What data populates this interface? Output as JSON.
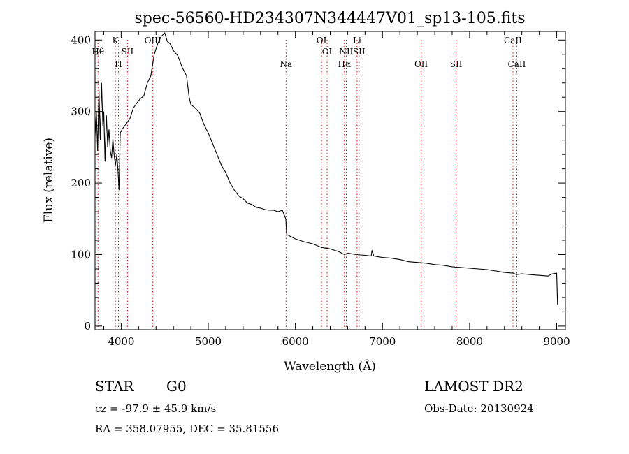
{
  "chart_data": {
    "type": "line",
    "title": "spec-56560-HD234307N344447V01_sp13-105.fits",
    "xlabel": "Wavelength (Å)",
    "ylabel": "Flux (relative)",
    "xlim": [
      3700,
      9100
    ],
    "ylim": [
      -5,
      412
    ],
    "xticks": [
      4000,
      5000,
      6000,
      7000,
      8000,
      9000
    ],
    "yticks": [
      0,
      100,
      200,
      300,
      400
    ],
    "grid": false,
    "line_color": "#000000",
    "marker_color": "#cc0000",
    "series": [
      {
        "x": [
          3700,
          3715,
          3730,
          3745,
          3760,
          3775,
          3790,
          3800,
          3815,
          3830,
          3845,
          3860,
          3875,
          3890,
          3905,
          3920,
          3935,
          3950,
          3965,
          3975,
          3990,
          4010,
          4040,
          4070,
          4100,
          4140,
          4180,
          4220,
          4260,
          4300,
          4340,
          4380,
          4420,
          4460,
          4500,
          4530,
          4560,
          4600,
          4650,
          4700,
          4750,
          4780,
          4800,
          4850,
          4900,
          4950,
          5000,
          5050,
          5100,
          5150,
          5200,
          5250,
          5300,
          5350,
          5400,
          5450,
          5500,
          5550,
          5600,
          5650,
          5700,
          5750,
          5800,
          5850,
          5890,
          5900,
          5950,
          6000,
          6100,
          6200,
          6300,
          6400,
          6500,
          6563,
          6600,
          6700,
          6800,
          6870,
          6880,
          6900,
          7000,
          7100,
          7200,
          7300,
          7400,
          7500,
          7600,
          7700,
          7800,
          7900,
          8000,
          8100,
          8200,
          8300,
          8400,
          8500,
          8540,
          8600,
          8700,
          8800,
          8900,
          8950,
          9000,
          9010
        ],
        "y": [
          265,
          300,
          245,
          330,
          260,
          340,
          280,
          300,
          230,
          295,
          250,
          275,
          245,
          235,
          262,
          238,
          225,
          240,
          215,
          190,
          270,
          275,
          280,
          285,
          290,
          305,
          312,
          318,
          322,
          340,
          350,
          380,
          395,
          405,
          410,
          398,
          395,
          385,
          378,
          362,
          350,
          320,
          310,
          305,
          298,
          282,
          270,
          255,
          240,
          225,
          215,
          200,
          190,
          182,
          178,
          172,
          170,
          166,
          165,
          163,
          162,
          162,
          160,
          162,
          150,
          128,
          125,
          122,
          118,
          115,
          110,
          108,
          104,
          100,
          102,
          100,
          99,
          98,
          106,
          98,
          96,
          95,
          93,
          90,
          89,
          88,
          86,
          85,
          83,
          82,
          81,
          80,
          79,
          77,
          75,
          74,
          72,
          73,
          72,
          71,
          70,
          73,
          74,
          30
        ]
      }
    ],
    "line_markers": [
      {
        "x": 3734,
        "labels": [
          "Hθ"
        ],
        "row": 3
      },
      {
        "x": 3934,
        "labels": [
          "K"
        ],
        "row": 1
      },
      {
        "x": 3969,
        "labels": [
          "H"
        ],
        "row": 4
      },
      {
        "x": 4072,
        "labels": [
          "SII"
        ],
        "row": 3
      },
      {
        "x": 4363,
        "labels": [
          "OIII"
        ],
        "row": 1
      },
      {
        "x": 5893,
        "labels": [
          "Na"
        ],
        "row": 4
      },
      {
        "x": 6300,
        "labels": [
          "OI"
        ],
        "row": 1
      },
      {
        "x": 6364,
        "labels": [
          "OI"
        ],
        "row": 3
      },
      {
        "x": 6563,
        "labels": [
          "Hα"
        ],
        "row": 4
      },
      {
        "x": 6584,
        "labels": [
          "NII"
        ],
        "row": 3
      },
      {
        "x": 6708,
        "labels": [
          "Li"
        ],
        "row": 1
      },
      {
        "x": 6731,
        "labels": [
          "SII"
        ],
        "row": 3
      },
      {
        "x": 7444,
        "labels": [
          "OII"
        ],
        "row": 4
      },
      {
        "x": 7845,
        "labels": [
          "SII"
        ],
        "row": 4
      },
      {
        "x": 8498,
        "labels": [
          "CaII"
        ],
        "row": 1
      },
      {
        "x": 8542,
        "labels": [
          "CaII"
        ],
        "row": 4
      }
    ]
  },
  "info": {
    "object_class": "STAR",
    "subclass": "G0",
    "survey": "LAMOST DR2",
    "cz_text": "cz = -97.9 ± 45.9 km/s",
    "obs_date_text": "Obs-Date: 20130924",
    "radec_text": "RA = 358.07955, DEC =  35.81556"
  }
}
